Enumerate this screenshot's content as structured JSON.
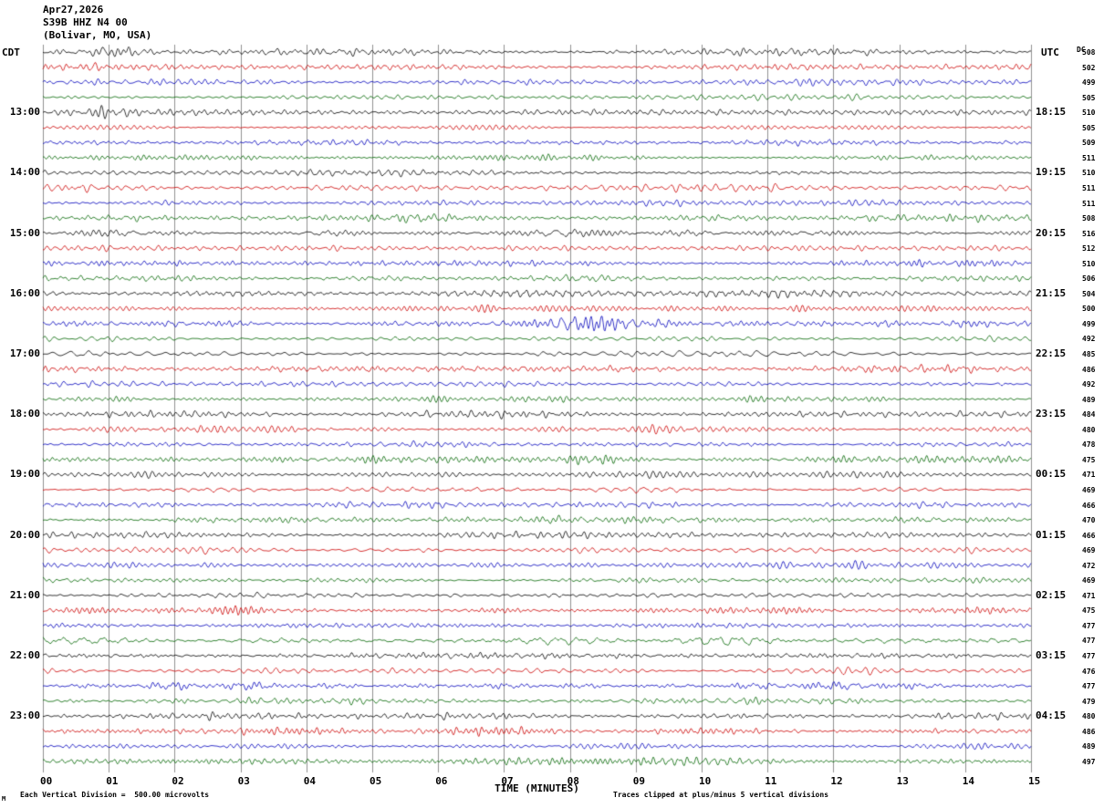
{
  "header": {
    "date": "Apr27,2026",
    "station": "S39B HHZ N4 00",
    "location": "(Bolivar, MO, USA)"
  },
  "axes": {
    "left_tz": "CDT",
    "right_tz": "UTC",
    "dc_label": "DC",
    "xlabel": "TIME (MINUTES)",
    "x_ticks": [
      "00",
      "01",
      "02",
      "03",
      "04",
      "05",
      "06",
      "07",
      "08",
      "09",
      "10",
      "11",
      "12",
      "13",
      "14",
      "15"
    ]
  },
  "footer": {
    "left": "Each Vertical Division =  500.00 microvolts",
    "right": "Traces clipped at plus/minus 5 vertical divisions",
    "corner_mark": "M"
  },
  "left_labels": [
    {
      "row": 4,
      "text": "13:00"
    },
    {
      "row": 8,
      "text": "14:00"
    },
    {
      "row": 12,
      "text": "15:00"
    },
    {
      "row": 16,
      "text": "16:00"
    },
    {
      "row": 20,
      "text": "17:00"
    },
    {
      "row": 24,
      "text": "18:00"
    },
    {
      "row": 28,
      "text": "19:00"
    },
    {
      "row": 32,
      "text": "20:00"
    },
    {
      "row": 36,
      "text": "21:00"
    },
    {
      "row": 40,
      "text": "22:00"
    },
    {
      "row": 44,
      "text": "23:00"
    }
  ],
  "right_labels": [
    {
      "row": 4,
      "text": "18:15"
    },
    {
      "row": 8,
      "text": "19:15"
    },
    {
      "row": 12,
      "text": "20:15"
    },
    {
      "row": 16,
      "text": "21:15"
    },
    {
      "row": 20,
      "text": "22:15"
    },
    {
      "row": 24,
      "text": "23:15"
    },
    {
      "row": 28,
      "text": "00:15"
    },
    {
      "row": 32,
      "text": "01:15"
    },
    {
      "row": 36,
      "text": "02:15"
    },
    {
      "row": 40,
      "text": "03:15"
    },
    {
      "row": 44,
      "text": "04:15"
    }
  ],
  "colors": {
    "trace_cycle": [
      "#000000",
      "#cc0000",
      "#0000bb",
      "#006600"
    ],
    "grid": "#909090",
    "background": "#ffffff"
  },
  "chart_data": {
    "type": "line",
    "title": "Helicorder seismogram S39B HHZ N4 00, Apr 27 2026, Bolivar MO USA",
    "xlabel": "TIME (MINUTES)",
    "x_range_minutes": [
      0,
      15
    ],
    "minutes_per_row": 15,
    "row_count": 48,
    "vertical_division_microvolts": 500.0,
    "clip_divisions": 5,
    "rows": [
      {
        "cdt": "12:00",
        "dc": 508
      },
      {
        "cdt": "12:15",
        "dc": 502
      },
      {
        "cdt": "12:30",
        "dc": 499
      },
      {
        "cdt": "12:45",
        "dc": 505
      },
      {
        "cdt": "13:00",
        "dc": 510
      },
      {
        "cdt": "13:15",
        "dc": 505
      },
      {
        "cdt": "13:30",
        "dc": 509
      },
      {
        "cdt": "13:45",
        "dc": 511
      },
      {
        "cdt": "14:00",
        "dc": 510
      },
      {
        "cdt": "14:15",
        "dc": 511
      },
      {
        "cdt": "14:30",
        "dc": 511
      },
      {
        "cdt": "14:45",
        "dc": 508
      },
      {
        "cdt": "15:00",
        "dc": 516
      },
      {
        "cdt": "15:15",
        "dc": 512
      },
      {
        "cdt": "15:30",
        "dc": 510
      },
      {
        "cdt": "15:45",
        "dc": 506
      },
      {
        "cdt": "16:00",
        "dc": 504
      },
      {
        "cdt": "16:15",
        "dc": 500
      },
      {
        "cdt": "16:30",
        "dc": 499
      },
      {
        "cdt": "16:45",
        "dc": 492
      },
      {
        "cdt": "17:00",
        "dc": 485
      },
      {
        "cdt": "17:15",
        "dc": 486
      },
      {
        "cdt": "17:30",
        "dc": 492
      },
      {
        "cdt": "17:45",
        "dc": 489
      },
      {
        "cdt": "18:00",
        "dc": 484
      },
      {
        "cdt": "18:15",
        "dc": 480
      },
      {
        "cdt": "18:30",
        "dc": 478
      },
      {
        "cdt": "18:45",
        "dc": 475
      },
      {
        "cdt": "19:00",
        "dc": 471
      },
      {
        "cdt": "19:15",
        "dc": 469
      },
      {
        "cdt": "19:30",
        "dc": 466
      },
      {
        "cdt": "19:45",
        "dc": 470
      },
      {
        "cdt": "20:00",
        "dc": 466
      },
      {
        "cdt": "20:15",
        "dc": 469
      },
      {
        "cdt": "20:30",
        "dc": 472
      },
      {
        "cdt": "20:45",
        "dc": 469
      },
      {
        "cdt": "21:00",
        "dc": 471
      },
      {
        "cdt": "21:15",
        "dc": 475
      },
      {
        "cdt": "21:30",
        "dc": 477
      },
      {
        "cdt": "21:45",
        "dc": 477
      },
      {
        "cdt": "22:00",
        "dc": 477
      },
      {
        "cdt": "22:15",
        "dc": 476
      },
      {
        "cdt": "22:30",
        "dc": 477
      },
      {
        "cdt": "22:45",
        "dc": 479
      },
      {
        "cdt": "23:00",
        "dc": 480
      },
      {
        "cdt": "23:15",
        "dc": 486
      },
      {
        "cdt": "23:30",
        "dc": 489
      },
      {
        "cdt": "23:45",
        "dc": 497
      }
    ],
    "events": [
      {
        "row": 0,
        "start_min": 0.8,
        "end_min": 1.5,
        "relative_amplitude": 3.4
      },
      {
        "row": 4,
        "start_min": 0.7,
        "end_min": 1.2,
        "relative_amplitude": 2.2
      },
      {
        "row": 18,
        "start_min": 7.3,
        "end_min": 9.2,
        "relative_amplitude": 2.8
      },
      {
        "row": 18,
        "start_min": 9.2,
        "end_min": 11.0,
        "relative_amplitude": 2.1
      },
      {
        "row": 18,
        "start_min": 12.3,
        "end_min": 13.0,
        "relative_amplitude": 2.0
      },
      {
        "row": 20,
        "start_min": 0.1,
        "end_min": 0.9,
        "relative_amplitude": 2.0
      },
      {
        "row": 27,
        "start_min": 7.9,
        "end_min": 8.8,
        "relative_amplitude": 3.0
      }
    ]
  }
}
